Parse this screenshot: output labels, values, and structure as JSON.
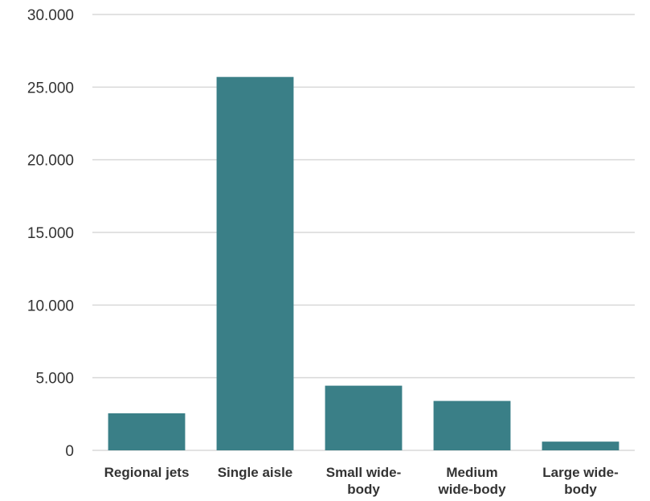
{
  "chart_data": {
    "type": "bar",
    "title": "",
    "xlabel": "",
    "ylabel": "",
    "categories": [
      [
        "Regional jets"
      ],
      [
        "Single aisle"
      ],
      [
        "Small wide-",
        "body"
      ],
      [
        "Medium",
        "wide-body"
      ],
      [
        "Large wide-",
        "body"
      ]
    ],
    "values": [
      2550,
      25700,
      4450,
      3400,
      600
    ],
    "ylim": [
      0,
      30000
    ],
    "yticks": [
      {
        "value": 0,
        "label": "0"
      },
      {
        "value": 5000,
        "label": "5.000"
      },
      {
        "value": 10000,
        "label": "10.000"
      },
      {
        "value": 15000,
        "label": "15.000"
      },
      {
        "value": 20000,
        "label": "20.000"
      },
      {
        "value": 25000,
        "label": "25.000"
      },
      {
        "value": 30000,
        "label": "30.000"
      }
    ],
    "grid": true,
    "legend": "none",
    "colors": {
      "bar": "#3a7f87",
      "grid": "#d9d9d9",
      "text": "#333333"
    }
  }
}
